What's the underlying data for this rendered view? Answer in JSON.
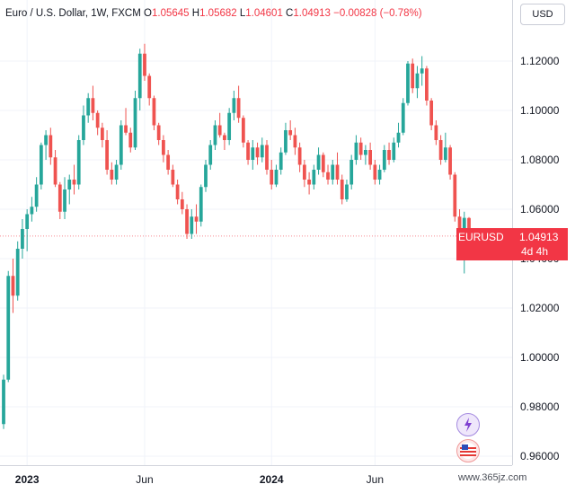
{
  "legend": {
    "title": "Euro / U.S. Dollar, 1W, FXCM",
    "open_label": "O",
    "open": "1.05645",
    "high_label": "H",
    "high": "1.05682",
    "low_label": "L",
    "low": "1.04601",
    "close_label": "C",
    "close": "1.04913",
    "change": "−0.00828 (−0.78%)"
  },
  "currency_button": "USD",
  "last_price": {
    "symbol": "EURUSD",
    "price": "1.04913",
    "countdown": "4d 4h"
  },
  "icons": {
    "flash": "lightning-icon",
    "flag": "us-flag-icon"
  },
  "watermark": "www.365jz.com",
  "colors": {
    "up": "#26a69a",
    "down": "#ef5350",
    "last": "#f23645"
  },
  "chart_data": {
    "type": "candlestick",
    "symbol": "EURUSD",
    "timeframe": "1W",
    "source": "FXCM",
    "price_scale": {
      "min": 0.96,
      "max": 1.125
    },
    "y_ticks": [
      "1.12000",
      "1.10000",
      "1.08000",
      "1.06000",
      "1.04000",
      "1.02000",
      "1.00000",
      "0.98000",
      "0.96000"
    ],
    "x_ticks": [
      {
        "label": "2023",
        "bold": true,
        "index": 5
      },
      {
        "label": "Jun",
        "bold": false,
        "index": 30
      },
      {
        "label": "2024",
        "bold": true,
        "index": 57
      },
      {
        "label": "Jun",
        "bold": false,
        "index": 79
      }
    ],
    "candles": [
      [
        0.973,
        0.993,
        0.971,
        0.991
      ],
      [
        0.991,
        1.035,
        0.99,
        1.033
      ],
      [
        1.033,
        1.04,
        1.018,
        1.025
      ],
      [
        1.025,
        1.047,
        1.023,
        1.044
      ],
      [
        1.044,
        1.056,
        1.04,
        1.052
      ],
      [
        1.052,
        1.06,
        1.043,
        1.058
      ],
      [
        1.058,
        1.065,
        1.055,
        1.061
      ],
      [
        1.061,
        1.073,
        1.059,
        1.07
      ],
      [
        1.07,
        1.087,
        1.068,
        1.086
      ],
      [
        1.086,
        1.092,
        1.08,
        1.09
      ],
      [
        1.09,
        1.093,
        1.078,
        1.081
      ],
      [
        1.081,
        1.084,
        1.069,
        1.07
      ],
      [
        1.07,
        1.071,
        1.056,
        1.059
      ],
      [
        1.059,
        1.073,
        1.056,
        1.068
      ],
      [
        1.068,
        1.074,
        1.062,
        1.072
      ],
      [
        1.072,
        1.078,
        1.066,
        1.07
      ],
      [
        1.07,
        1.09,
        1.068,
        1.088
      ],
      [
        1.088,
        1.102,
        1.086,
        1.098
      ],
      [
        1.098,
        1.107,
        1.095,
        1.105
      ],
      [
        1.105,
        1.11,
        1.096,
        1.099
      ],
      [
        1.099,
        1.1,
        1.09,
        1.093
      ],
      [
        1.093,
        1.095,
        1.085,
        1.088
      ],
      [
        1.088,
        1.092,
        1.074,
        1.076
      ],
      [
        1.076,
        1.079,
        1.07,
        1.072
      ],
      [
        1.072,
        1.08,
        1.07,
        1.078
      ],
      [
        1.078,
        1.096,
        1.076,
        1.094
      ],
      [
        1.094,
        1.101,
        1.09,
        1.091
      ],
      [
        1.091,
        1.093,
        1.083,
        1.085
      ],
      [
        1.085,
        1.108,
        1.084,
        1.105
      ],
      [
        1.105,
        1.125,
        1.1,
        1.123
      ],
      [
        1.123,
        1.127,
        1.112,
        1.114
      ],
      [
        1.114,
        1.115,
        1.102,
        1.105
      ],
      [
        1.105,
        1.106,
        1.092,
        1.094
      ],
      [
        1.094,
        1.095,
        1.086,
        1.088
      ],
      [
        1.088,
        1.09,
        1.079,
        1.082
      ],
      [
        1.082,
        1.084,
        1.074,
        1.076
      ],
      [
        1.076,
        1.078,
        1.069,
        1.07
      ],
      [
        1.07,
        1.072,
        1.062,
        1.064
      ],
      [
        1.064,
        1.067,
        1.058,
        1.06
      ],
      [
        1.06,
        1.062,
        1.048,
        1.05
      ],
      [
        1.05,
        1.06,
        1.048,
        1.057
      ],
      [
        1.057,
        1.062,
        1.05,
        1.055
      ],
      [
        1.055,
        1.07,
        1.053,
        1.069
      ],
      [
        1.069,
        1.08,
        1.067,
        1.078
      ],
      [
        1.078,
        1.088,
        1.076,
        1.086
      ],
      [
        1.086,
        1.096,
        1.084,
        1.094
      ],
      [
        1.094,
        1.099,
        1.089,
        1.09
      ],
      [
        1.09,
        1.091,
        1.084,
        1.088
      ],
      [
        1.088,
        1.101,
        1.086,
        1.099
      ],
      [
        1.099,
        1.108,
        1.096,
        1.105
      ],
      [
        1.105,
        1.11,
        1.095,
        1.097
      ],
      [
        1.097,
        1.098,
        1.085,
        1.087
      ],
      [
        1.087,
        1.088,
        1.078,
        1.08
      ],
      [
        1.08,
        1.088,
        1.076,
        1.085
      ],
      [
        1.085,
        1.087,
        1.078,
        1.081
      ],
      [
        1.081,
        1.089,
        1.079,
        1.086
      ],
      [
        1.086,
        1.088,
        1.074,
        1.076
      ],
      [
        1.076,
        1.08,
        1.068,
        1.07
      ],
      [
        1.07,
        1.078,
        1.069,
        1.076
      ],
      [
        1.076,
        1.085,
        1.074,
        1.083
      ],
      [
        1.083,
        1.095,
        1.082,
        1.092
      ],
      [
        1.092,
        1.096,
        1.088,
        1.09
      ],
      [
        1.09,
        1.093,
        1.082,
        1.085
      ],
      [
        1.085,
        1.087,
        1.075,
        1.078
      ],
      [
        1.078,
        1.08,
        1.069,
        1.072
      ],
      [
        1.072,
        1.075,
        1.066,
        1.07
      ],
      [
        1.07,
        1.078,
        1.068,
        1.076
      ],
      [
        1.076,
        1.085,
        1.074,
        1.082
      ],
      [
        1.082,
        1.083,
        1.073,
        1.075
      ],
      [
        1.075,
        1.078,
        1.07,
        1.072
      ],
      [
        1.072,
        1.08,
        1.07,
        1.078
      ],
      [
        1.078,
        1.083,
        1.07,
        1.072
      ],
      [
        1.072,
        1.074,
        1.062,
        1.064
      ],
      [
        1.064,
        1.072,
        1.063,
        1.07
      ],
      [
        1.07,
        1.082,
        1.068,
        1.08
      ],
      [
        1.08,
        1.09,
        1.078,
        1.087
      ],
      [
        1.087,
        1.089,
        1.08,
        1.082
      ],
      [
        1.082,
        1.086,
        1.078,
        1.084
      ],
      [
        1.084,
        1.087,
        1.076,
        1.078
      ],
      [
        1.078,
        1.08,
        1.07,
        1.072
      ],
      [
        1.072,
        1.078,
        1.07,
        1.076
      ],
      [
        1.076,
        1.086,
        1.075,
        1.084
      ],
      [
        1.084,
        1.087,
        1.078,
        1.08
      ],
      [
        1.08,
        1.089,
        1.079,
        1.087
      ],
      [
        1.087,
        1.095,
        1.085,
        1.091
      ],
      [
        1.091,
        1.105,
        1.09,
        1.103
      ],
      [
        1.103,
        1.12,
        1.102,
        1.119
      ],
      [
        1.119,
        1.121,
        1.107,
        1.109
      ],
      [
        1.109,
        1.118,
        1.105,
        1.115
      ],
      [
        1.115,
        1.122,
        1.11,
        1.117
      ],
      [
        1.117,
        1.118,
        1.102,
        1.104
      ],
      [
        1.104,
        1.105,
        1.092,
        1.094
      ],
      [
        1.094,
        1.096,
        1.086,
        1.088
      ],
      [
        1.088,
        1.09,
        1.078,
        1.08
      ],
      [
        1.08,
        1.091,
        1.079,
        1.085
      ],
      [
        1.085,
        1.086,
        1.072,
        1.074
      ],
      [
        1.074,
        1.075,
        1.055,
        1.057
      ],
      [
        1.057,
        1.06,
        1.044,
        1.047
      ],
      [
        1.047,
        1.059,
        1.034,
        1.0565
      ],
      [
        1.05645,
        1.05682,
        1.04601,
        1.04913
      ]
    ]
  }
}
